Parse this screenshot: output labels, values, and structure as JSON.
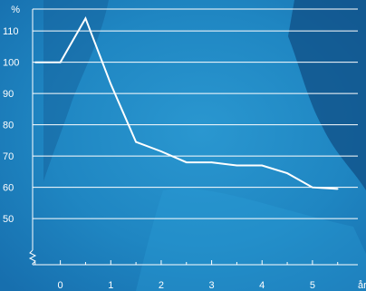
{
  "colors": {
    "background": "#1f86c2",
    "background_dark": "#0f4f84",
    "line": "#ffffff",
    "grid": "#ffffff"
  },
  "chart_data": {
    "type": "line",
    "title": "",
    "xlabel": "år",
    "ylabel": "%",
    "x_ticks": [
      0,
      1,
      2,
      3,
      4,
      5
    ],
    "y_ticks": [
      50,
      60,
      70,
      80,
      90,
      100,
      110
    ],
    "xlim": [
      -0.55,
      5.9
    ],
    "ylim": [
      37,
      117
    ],
    "y_axis_break": true,
    "grid": "horizontal",
    "series": [
      {
        "name": "",
        "x": [
          -0.5,
          0,
          0.5,
          1,
          1.5,
          2,
          2.5,
          3,
          3.5,
          4,
          4.5,
          5,
          5.5
        ],
        "values": [
          100,
          100,
          114,
          93,
          74.5,
          71.5,
          68,
          68,
          67,
          67,
          64.5,
          60,
          59.5
        ]
      }
    ]
  }
}
